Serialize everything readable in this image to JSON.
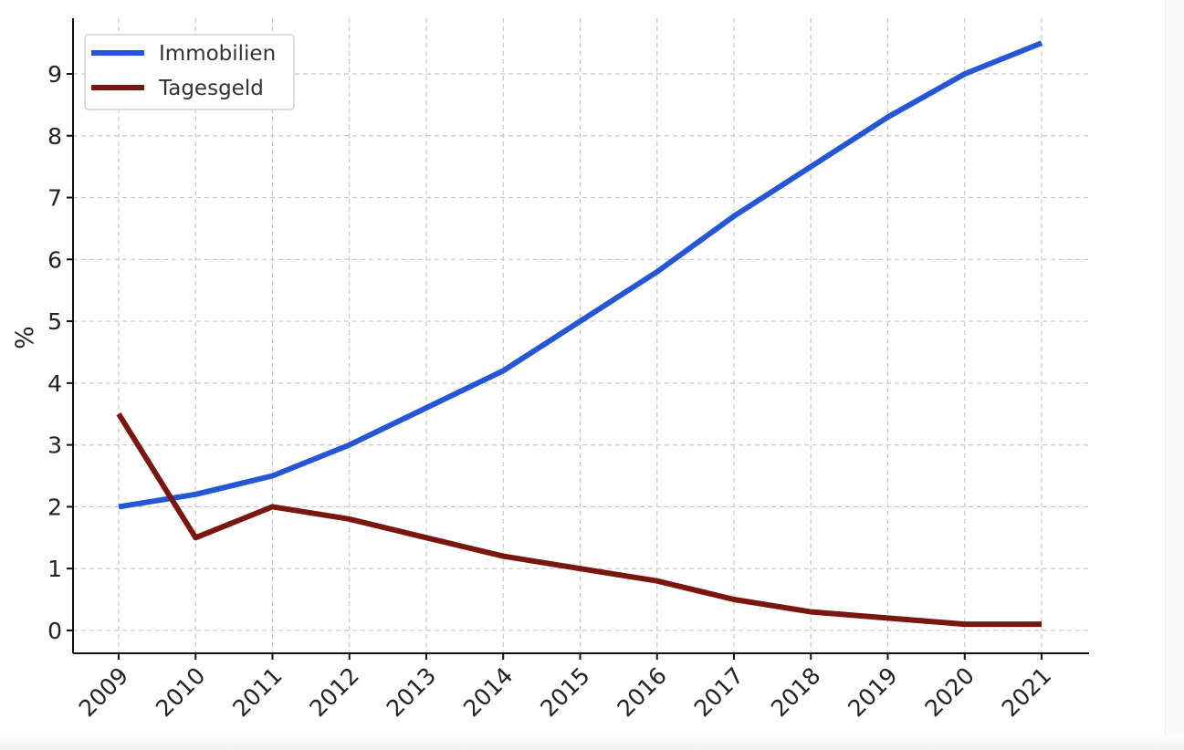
{
  "chart_data": {
    "type": "line",
    "title": "",
    "xlabel": "",
    "ylabel": "%",
    "categories": [
      "2009",
      "2010",
      "2011",
      "2012",
      "2013",
      "2014",
      "2015",
      "2016",
      "2017",
      "2018",
      "2019",
      "2020",
      "2021"
    ],
    "yticks": [
      "0",
      "1",
      "2",
      "3",
      "4",
      "5",
      "6",
      "7",
      "8",
      "9"
    ],
    "ylim": [
      -0.37,
      9.9
    ],
    "grid": true,
    "legend_position": "top-left",
    "series": [
      {
        "name": "Immobilien",
        "color": "#2456d6",
        "values": [
          2.0,
          2.2,
          2.5,
          3.0,
          3.6,
          4.2,
          5.0,
          5.8,
          6.7,
          7.5,
          8.3,
          9.0,
          9.5
        ]
      },
      {
        "name": "Tagesgeld",
        "color": "#7a1610",
        "values": [
          3.5,
          1.5,
          2.0,
          1.8,
          1.5,
          1.2,
          1.0,
          0.8,
          0.5,
          0.3,
          0.2,
          0.1,
          0.1
        ]
      }
    ]
  }
}
